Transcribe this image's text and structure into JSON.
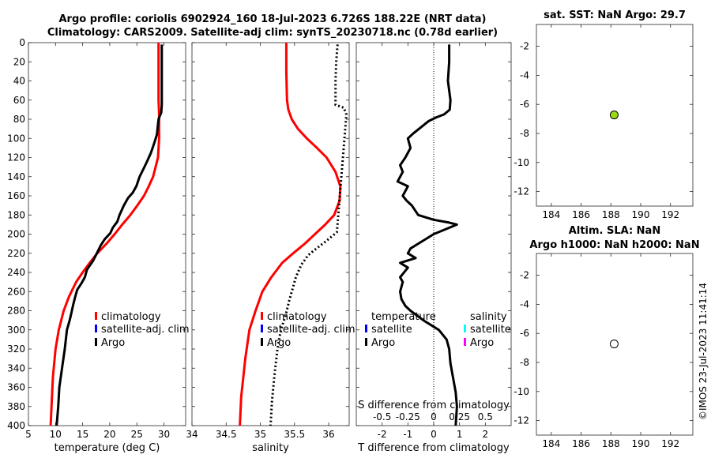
{
  "title": {
    "line1": "Argo profile: coriolis 6902924_160 18-Jul-2023 6.726S 188.22E (NRT data)",
    "line2": "Climatology: CARS2009. Satellite-adj clim: synTS_20230718.nc (0.78d earlier)"
  },
  "timestamp": "©IMOS 23-Jul-2023 11:41:14",
  "colors": {
    "climatology": "#ff0000",
    "satellite": "#0000ff",
    "argo": "#000000",
    "sal_satellite": "#00ffff",
    "sal_argo": "#ff00ff",
    "argo_dot": "#99dd11"
  },
  "chart_data": [
    {
      "id": "temperature",
      "type": "line",
      "xlabel": "temperature (deg C)",
      "xlim": [
        5,
        34
      ],
      "ylim": [
        0,
        400
      ],
      "y_reversed": true,
      "xticks": [
        5,
        10,
        15,
        20,
        25,
        30
      ],
      "yticks": [
        0,
        20,
        40,
        60,
        80,
        100,
        120,
        140,
        160,
        180,
        200,
        220,
        240,
        260,
        280,
        300,
        320,
        340,
        360,
        380,
        400
      ],
      "legend": [
        "climatology",
        "satellite-adj. clim",
        "Argo"
      ],
      "series": [
        {
          "name": "climatology",
          "color": "#ff0000",
          "x": [
            29.0,
            29.0,
            29.0,
            29.1,
            29.1,
            28.9,
            28.0,
            27.2,
            26.3,
            25.1,
            23.8,
            22.3,
            20.9,
            19.4,
            17.7,
            16.3,
            15.0,
            13.8,
            12.5,
            11.5,
            10.6,
            10.0,
            9.5,
            9.1
          ],
          "y": [
            0,
            40,
            60,
            75,
            100,
            120,
            140,
            150,
            160,
            170,
            180,
            190,
            200,
            210,
            220,
            230,
            240,
            250,
            265,
            280,
            300,
            320,
            350,
            400
          ]
        },
        {
          "name": "Argo",
          "color": "#000000",
          "x": [
            29.6,
            29.6,
            29.6,
            29.5,
            29.0,
            28.7,
            28.2,
            27.6,
            26.8,
            26.2,
            25.5,
            24.9,
            24.2,
            23.4,
            22.6,
            21.8,
            21.4,
            20.6,
            20.1,
            19.1,
            18.3,
            17.8,
            16.9,
            15.8,
            15.4,
            14.7,
            14.0,
            13.6,
            13.2,
            12.9,
            12.6,
            12.1,
            11.7,
            11.2,
            10.7,
            10.5,
            10.2
          ],
          "y": [
            2,
            40,
            65,
            73,
            80,
            96,
            105,
            115,
            125,
            132,
            140,
            150,
            157,
            162,
            170,
            180,
            187,
            193,
            199,
            205,
            212,
            218,
            228,
            237,
            245,
            252,
            258,
            266,
            275,
            283,
            290,
            300,
            320,
            340,
            360,
            380,
            400
          ]
        }
      ]
    },
    {
      "id": "salinity",
      "type": "line",
      "xlabel": "salinity",
      "xlim": [
        34,
        36.3
      ],
      "ylim": [
        0,
        400
      ],
      "y_reversed": true,
      "xticks": [
        34,
        34.5,
        35,
        35.5,
        36
      ],
      "xticklabels": [
        "34",
        "34.5",
        "35",
        "35.5",
        "36"
      ],
      "legend": [
        "climatology",
        "satellite-adj. clim",
        "Argo"
      ],
      "series": [
        {
          "name": "climatology",
          "color": "#ff0000",
          "x": [
            35.38,
            35.38,
            35.39,
            35.41,
            35.46,
            35.55,
            35.68,
            35.83,
            35.97,
            36.1,
            36.17,
            36.16,
            36.08,
            35.95,
            35.8,
            35.65,
            35.48,
            35.32,
            35.16,
            35.03,
            34.93,
            34.84,
            34.78,
            34.72,
            34.7
          ],
          "y": [
            0,
            30,
            60,
            70,
            80,
            90,
            100,
            110,
            120,
            135,
            150,
            165,
            180,
            190,
            200,
            210,
            220,
            230,
            245,
            260,
            280,
            300,
            330,
            370,
            400
          ]
        },
        {
          "name": "Argo",
          "color": "#000000",
          "style": "dotted",
          "x": [
            36.13,
            36.11,
            36.1,
            36.1,
            36.22,
            36.26,
            36.12,
            35.95,
            35.82,
            35.7,
            35.6,
            35.52,
            35.48,
            35.42,
            35.37,
            35.3,
            35.25,
            35.21,
            35.17,
            35.15
          ],
          "y": [
            2,
            20,
            40,
            65,
            68,
            75,
            198,
            208,
            215,
            222,
            232,
            245,
            255,
            270,
            285,
            300,
            320,
            345,
            375,
            400
          ]
        }
      ]
    },
    {
      "id": "tdiff",
      "type": "line",
      "xlabel": "T difference from climatology",
      "xlabel2": "S difference from climatology",
      "xlim": [
        -3,
        3
      ],
      "ylim": [
        0,
        400
      ],
      "y_reversed": true,
      "xticks": [
        -2,
        -1,
        0,
        1,
        2
      ],
      "xticks2": [
        -0.5,
        -0.25,
        0,
        0.25,
        0.5
      ],
      "xticklabels2": [
        "-0.5",
        "-0.25",
        "0",
        "0.25",
        "0.5"
      ],
      "legend_t": [
        "temperature",
        "satellite",
        "Argo"
      ],
      "legend_s": [
        "salinity",
        "satellite",
        "Argo"
      ],
      "series": [
        {
          "name": "Argo",
          "color": "#000000",
          "x": [
            0.6,
            0.6,
            0.55,
            0.65,
            0.62,
            0.4,
            0.1,
            -0.2,
            -0.8,
            -1.0,
            -0.9,
            -1.1,
            -1.3,
            -1.2,
            -1.4,
            -1.0,
            -1.2,
            -1.05,
            -0.85,
            -0.6,
            0.0,
            0.6,
            0.9,
            0.0,
            -0.6,
            -0.9,
            -1.0,
            -0.7,
            -1.3,
            -1.0,
            -1.3,
            -1.2,
            -1.3,
            -1.25,
            -1.1,
            -0.9,
            -0.4,
            0.2,
            0.5,
            0.6,
            0.65,
            0.75,
            0.85,
            0.9,
            0.85
          ],
          "y": [
            2,
            20,
            40,
            60,
            70,
            75,
            78,
            82,
            95,
            100,
            110,
            120,
            128,
            135,
            145,
            150,
            160,
            165,
            170,
            180,
            185,
            188,
            190,
            200,
            210,
            215,
            220,
            225,
            230,
            235,
            245,
            250,
            260,
            268,
            275,
            280,
            290,
            300,
            310,
            320,
            335,
            350,
            365,
            380,
            400
          ]
        }
      ]
    },
    {
      "id": "sst_map",
      "type": "scatter",
      "title": "sat. SST: NaN Argo: 29.7",
      "xlim": [
        183,
        193.5
      ],
      "ylim": [
        -13,
        -0.5
      ],
      "xticks": [
        184,
        186,
        188,
        190,
        192
      ],
      "yticks": [
        -2,
        -4,
        -6,
        -8,
        -10,
        -12
      ],
      "points": [
        {
          "x": 188.22,
          "y": -6.726,
          "fill": "#99dd11"
        }
      ]
    },
    {
      "id": "sla_map",
      "type": "scatter",
      "title": "Altim. SLA: NaN",
      "title2": "Argo h1000: NaN h2000: NaN",
      "xlim": [
        183,
        193.5
      ],
      "ylim": [
        -13,
        -0.5
      ],
      "xticks": [
        184,
        186,
        188,
        190,
        192
      ],
      "yticks": [
        -2,
        -4,
        -6,
        -8,
        -10,
        -12
      ],
      "points": [
        {
          "x": 188.22,
          "y": -6.726,
          "fill": "#ffffff"
        }
      ]
    }
  ]
}
